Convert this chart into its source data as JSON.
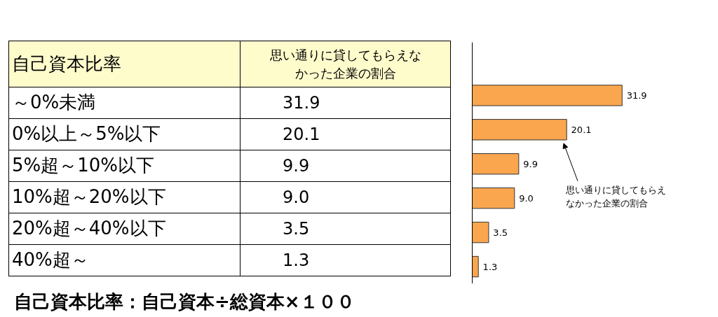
{
  "chart_data": {
    "type": "bar",
    "orientation": "horizontal",
    "ylabel": "自己資本比率",
    "xlabel": "思い通りに貸してもらえなかった企業の割合",
    "categories": [
      "～0%未満",
      "0%以上～5%以下",
      "5%超～10%以下",
      "10%超～20%以下",
      "20%超～40%以下",
      "40%超～"
    ],
    "values": [
      31.9,
      20.1,
      9.9,
      9.0,
      3.5,
      1.3
    ],
    "color": "#f9a64f",
    "value_labels": [
      "31.9",
      "20.1",
      "9.9",
      "9.0",
      "3.5",
      "1.3"
    ],
    "tick_labels": false,
    "grid": false,
    "annotations": [
      "思い通りに貸してもらえなかった企業の割合",
      "自己資本比率：自己資本÷総資本×１００"
    ]
  }
}
